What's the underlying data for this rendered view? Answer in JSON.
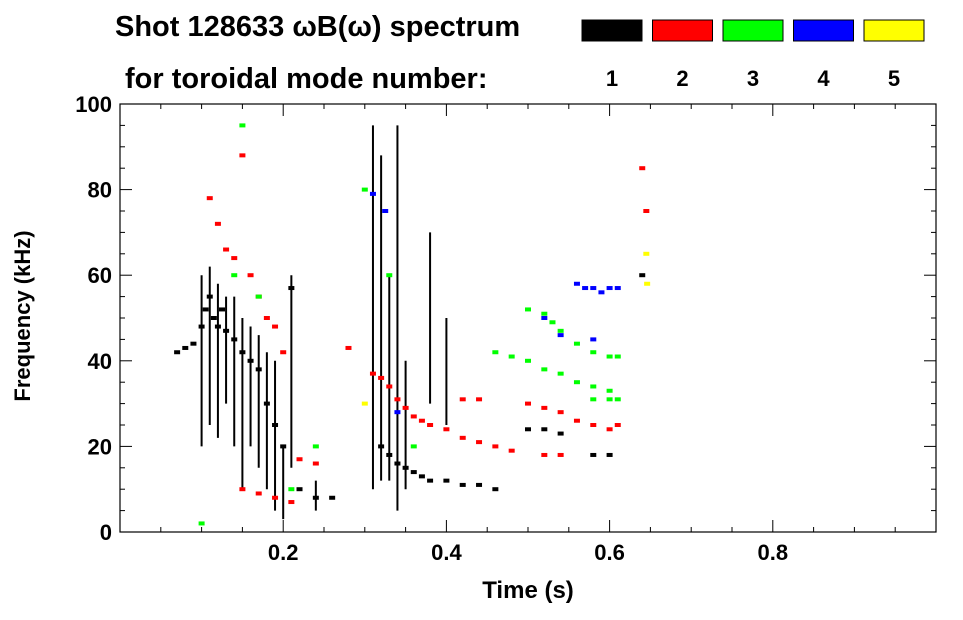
{
  "header": {
    "title": "Shot 128633 ωB(ω) spectrum",
    "subtitle": "for toroidal mode number:"
  },
  "chart_data": {
    "type": "scatter",
    "title": "Shot 128633 ωB(ω) spectrum",
    "subtitle": "for toroidal mode number:",
    "xlabel": "Time (s)",
    "ylabel": "Frequency (kHz)",
    "xlim": [
      0.0,
      1.0
    ],
    "ylim": [
      0,
      100
    ],
    "x_ticks": [
      0.2,
      0.4,
      0.6,
      0.8
    ],
    "x_tick_labels": [
      "0.2",
      "0.4",
      "0.6",
      "0.8"
    ],
    "y_ticks": [
      0,
      20,
      40,
      60,
      80,
      100
    ],
    "y_tick_labels": [
      "0",
      "20",
      "40",
      "60",
      "80",
      "100"
    ],
    "grid": false,
    "legend_position": "top-right",
    "series": [
      {
        "name": "1",
        "color": "#000000",
        "points": [
          [
            0.07,
            42
          ],
          [
            0.08,
            43
          ],
          [
            0.09,
            44
          ],
          [
            0.1,
            48
          ],
          [
            0.105,
            52
          ],
          [
            0.11,
            55
          ],
          [
            0.115,
            50
          ],
          [
            0.12,
            48
          ],
          [
            0.125,
            52
          ],
          [
            0.13,
            47
          ],
          [
            0.14,
            45
          ],
          [
            0.15,
            42
          ],
          [
            0.16,
            40
          ],
          [
            0.17,
            38
          ],
          [
            0.18,
            30
          ],
          [
            0.19,
            25
          ],
          [
            0.2,
            20
          ],
          [
            0.21,
            57
          ],
          [
            0.22,
            10
          ],
          [
            0.24,
            8
          ],
          [
            0.26,
            8
          ],
          [
            0.32,
            20
          ],
          [
            0.33,
            18
          ],
          [
            0.34,
            16
          ],
          [
            0.35,
            15
          ],
          [
            0.36,
            14
          ],
          [
            0.37,
            13
          ],
          [
            0.38,
            12
          ],
          [
            0.4,
            12
          ],
          [
            0.42,
            11
          ],
          [
            0.44,
            11
          ],
          [
            0.46,
            10
          ],
          [
            0.5,
            24
          ],
          [
            0.52,
            24
          ],
          [
            0.54,
            23
          ],
          [
            0.58,
            18
          ],
          [
            0.6,
            18
          ],
          [
            0.64,
            60
          ]
        ],
        "vertical_streaks": [
          [
            0.1,
            20,
            60
          ],
          [
            0.11,
            25,
            62
          ],
          [
            0.12,
            22,
            58
          ],
          [
            0.13,
            30,
            55
          ],
          [
            0.14,
            20,
            55
          ],
          [
            0.15,
            10,
            50
          ],
          [
            0.16,
            20,
            48
          ],
          [
            0.17,
            15,
            46
          ],
          [
            0.18,
            10,
            42
          ],
          [
            0.19,
            5,
            40
          ],
          [
            0.2,
            3,
            20
          ],
          [
            0.21,
            15,
            60
          ],
          [
            0.24,
            5,
            12
          ],
          [
            0.31,
            10,
            95
          ],
          [
            0.32,
            12,
            88
          ],
          [
            0.33,
            12,
            60
          ],
          [
            0.34,
            5,
            95
          ],
          [
            0.35,
            10,
            40
          ],
          [
            0.38,
            30,
            70
          ],
          [
            0.4,
            25,
            50
          ]
        ]
      },
      {
        "name": "2",
        "color": "#ff0000",
        "points": [
          [
            0.11,
            78
          ],
          [
            0.12,
            72
          ],
          [
            0.13,
            66
          ],
          [
            0.14,
            64
          ],
          [
            0.15,
            88
          ],
          [
            0.16,
            60
          ],
          [
            0.17,
            55
          ],
          [
            0.18,
            50
          ],
          [
            0.19,
            48
          ],
          [
            0.2,
            42
          ],
          [
            0.15,
            10
          ],
          [
            0.17,
            9
          ],
          [
            0.19,
            8
          ],
          [
            0.21,
            7
          ],
          [
            0.22,
            17
          ],
          [
            0.24,
            16
          ],
          [
            0.28,
            43
          ],
          [
            0.31,
            37
          ],
          [
            0.32,
            36
          ],
          [
            0.33,
            34
          ],
          [
            0.34,
            31
          ],
          [
            0.35,
            29
          ],
          [
            0.36,
            27
          ],
          [
            0.37,
            26
          ],
          [
            0.38,
            25
          ],
          [
            0.4,
            24
          ],
          [
            0.42,
            22
          ],
          [
            0.44,
            21
          ],
          [
            0.46,
            20
          ],
          [
            0.42,
            31
          ],
          [
            0.44,
            31
          ],
          [
            0.48,
            19
          ],
          [
            0.5,
            30
          ],
          [
            0.52,
            29
          ],
          [
            0.54,
            28
          ],
          [
            0.56,
            26
          ],
          [
            0.58,
            25
          ],
          [
            0.6,
            24
          ],
          [
            0.61,
            25
          ],
          [
            0.64,
            85
          ],
          [
            0.645,
            75
          ],
          [
            0.52,
            18
          ],
          [
            0.54,
            18
          ]
        ]
      },
      {
        "name": "3",
        "color": "#00ff00",
        "points": [
          [
            0.1,
            2
          ],
          [
            0.14,
            60
          ],
          [
            0.15,
            95
          ],
          [
            0.17,
            55
          ],
          [
            0.21,
            10
          ],
          [
            0.24,
            20
          ],
          [
            0.3,
            80
          ],
          [
            0.33,
            60
          ],
          [
            0.36,
            20
          ],
          [
            0.46,
            42
          ],
          [
            0.48,
            41
          ],
          [
            0.5,
            40
          ],
          [
            0.5,
            52
          ],
          [
            0.52,
            51
          ],
          [
            0.53,
            49
          ],
          [
            0.54,
            47
          ],
          [
            0.56,
            44
          ],
          [
            0.58,
            42
          ],
          [
            0.6,
            41
          ],
          [
            0.61,
            41
          ],
          [
            0.52,
            38
          ],
          [
            0.54,
            37
          ],
          [
            0.56,
            35
          ],
          [
            0.58,
            34
          ],
          [
            0.6,
            33
          ],
          [
            0.61,
            31
          ],
          [
            0.58,
            31
          ],
          [
            0.6,
            31
          ]
        ]
      },
      {
        "name": "4",
        "color": "#0000ff",
        "points": [
          [
            0.31,
            79
          ],
          [
            0.325,
            75
          ],
          [
            0.34,
            28
          ],
          [
            0.56,
            58
          ],
          [
            0.57,
            57
          ],
          [
            0.58,
            57
          ],
          [
            0.59,
            56
          ],
          [
            0.6,
            57
          ],
          [
            0.61,
            57
          ],
          [
            0.52,
            50
          ],
          [
            0.54,
            46
          ],
          [
            0.58,
            45
          ]
        ]
      },
      {
        "name": "5",
        "color": "#ffff00",
        "points": [
          [
            0.645,
            65
          ],
          [
            0.646,
            58
          ],
          [
            0.3,
            30
          ]
        ]
      }
    ]
  }
}
